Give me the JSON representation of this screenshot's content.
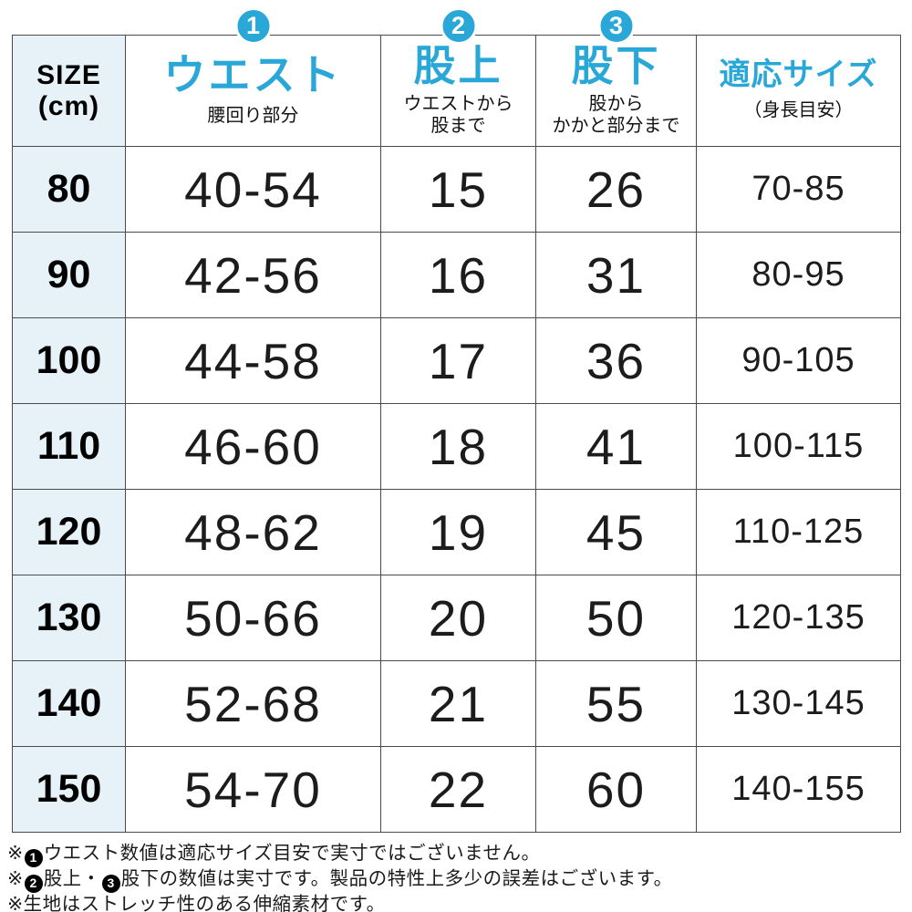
{
  "colors": {
    "accent": "#29a8d8",
    "size_column_bg": "#e6f2f8",
    "border": "#4b4b4b",
    "note_badge_bg": "#000000"
  },
  "table": {
    "columns": [
      {
        "key": "size",
        "title_line1": "SIZE",
        "title_line2": "(cm)"
      },
      {
        "key": "waist",
        "badge": "1",
        "title": "ウエスト",
        "sub_lines": [
          "腰回り部分"
        ]
      },
      {
        "key": "rise",
        "badge": "2",
        "title": "股上",
        "sub_lines": [
          "ウエストから",
          "股まで"
        ]
      },
      {
        "key": "inseam",
        "badge": "3",
        "title": "股下",
        "sub_lines": [
          "股から",
          "かかと部分まで"
        ]
      },
      {
        "key": "fit",
        "title": "適応サイズ",
        "sub_lines": [
          "（身長目安）"
        ]
      }
    ],
    "rows": [
      {
        "size": "80",
        "waist": "40-54",
        "rise": "15",
        "inseam": "26",
        "fit": "70-85"
      },
      {
        "size": "90",
        "waist": "42-56",
        "rise": "16",
        "inseam": "31",
        "fit": "80-95"
      },
      {
        "size": "100",
        "waist": "44-58",
        "rise": "17",
        "inseam": "36",
        "fit": "90-105"
      },
      {
        "size": "110",
        "waist": "46-60",
        "rise": "18",
        "inseam": "41",
        "fit": "100-115"
      },
      {
        "size": "120",
        "waist": "48-62",
        "rise": "19",
        "inseam": "45",
        "fit": "110-125"
      },
      {
        "size": "130",
        "waist": "50-66",
        "rise": "20",
        "inseam": "50",
        "fit": "120-135"
      },
      {
        "size": "140",
        "waist": "52-68",
        "rise": "21",
        "inseam": "55",
        "fit": "130-145"
      },
      {
        "size": "150",
        "waist": "54-70",
        "rise": "22",
        "inseam": "60",
        "fit": "140-155"
      }
    ]
  },
  "notes": [
    {
      "segments": [
        {
          "text": "※"
        },
        {
          "badge": "1"
        },
        {
          "text": "ウエスト数値は適応サイズ目安で実寸ではございません。"
        }
      ]
    },
    {
      "segments": [
        {
          "text": "※"
        },
        {
          "badge": "2"
        },
        {
          "text": "股上・"
        },
        {
          "badge": "3"
        },
        {
          "text": "股下の数値は実寸です。製品の特性上多少の誤差はございます。"
        }
      ]
    },
    {
      "segments": [
        {
          "text": "※生地はストレッチ性のある伸縮素材です。"
        }
      ]
    }
  ],
  "chart_data": {
    "type": "table",
    "title": "子供ズボン サイズ表 (cm)",
    "columns": [
      "SIZE (cm)",
      "ウエスト 腰回り部分",
      "股上 ウエストから股まで",
      "股下 股からかかと部分まで",
      "適応サイズ（身長目安）"
    ],
    "rows": [
      [
        "80",
        "40-54",
        "15",
        "26",
        "70-85"
      ],
      [
        "90",
        "42-56",
        "16",
        "31",
        "80-95"
      ],
      [
        "100",
        "44-58",
        "17",
        "36",
        "90-105"
      ],
      [
        "110",
        "46-60",
        "18",
        "41",
        "100-115"
      ],
      [
        "120",
        "48-62",
        "19",
        "45",
        "110-125"
      ],
      [
        "130",
        "50-66",
        "20",
        "50",
        "120-135"
      ],
      [
        "140",
        "52-68",
        "21",
        "55",
        "130-145"
      ],
      [
        "150",
        "54-70",
        "22",
        "60",
        "140-155"
      ]
    ],
    "notes": [
      "※❶ウエスト数値は適応サイズ目安で実寸ではございません。",
      "※❷股上・❸股下の数値は実寸です。製品の特性上多少の誤差はございます。",
      "※生地はストレッチ性のある伸縮素材です。"
    ]
  }
}
